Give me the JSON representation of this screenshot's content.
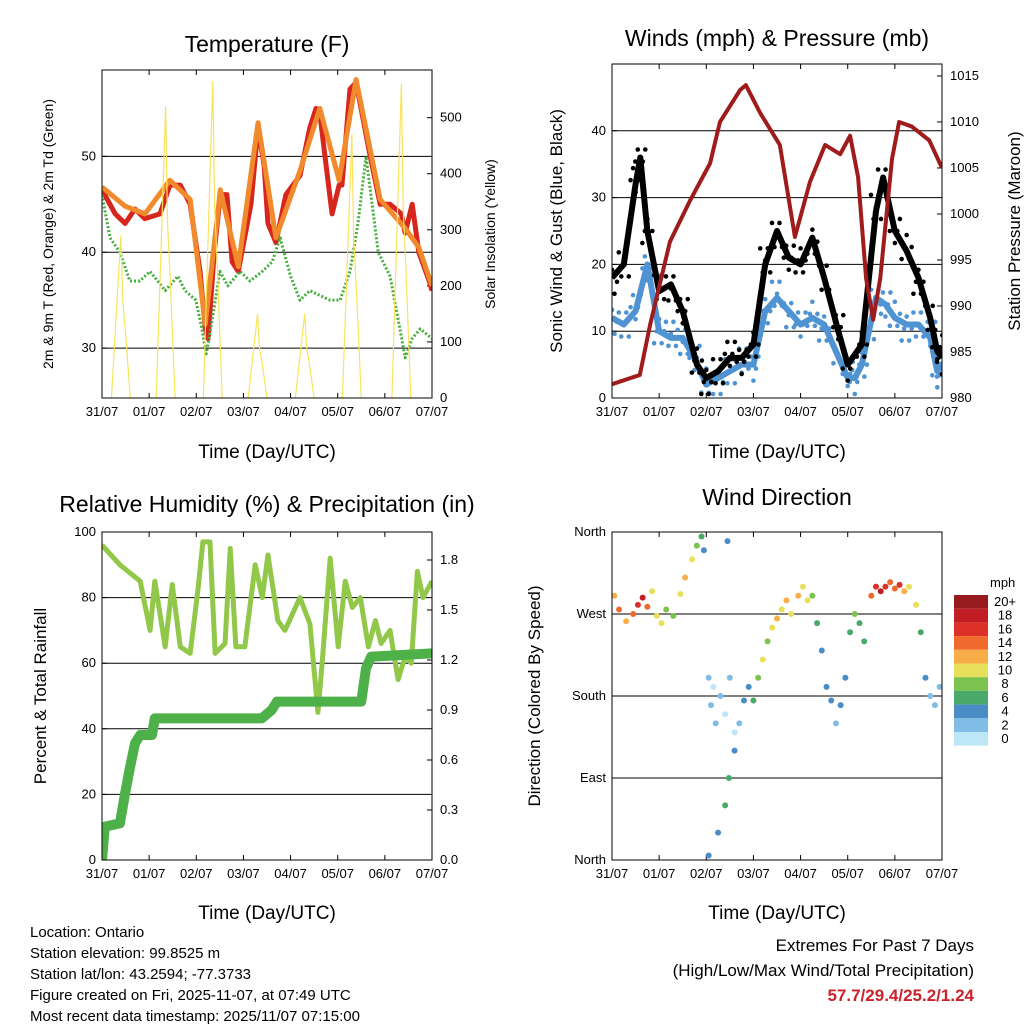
{
  "panels": {
    "temp": {
      "title": "Temperature (F)",
      "xlabel": "Time (Day/UTC)",
      "ylabel": "2m & 9m T (Red, Orange) & 2m Td (Green)",
      "ylabel2": "Solar Insolation (Yellow)"
    },
    "wind": {
      "title": "Winds (mph) & Pressure (mb)",
      "xlabel": "Time (Day/UTC)",
      "ylabel": "Sonic Wind & Gust (Blue, Black)",
      "ylabel2": "Station Pressure (Maroon)"
    },
    "rh": {
      "title": "Relative Humidity (%) & Precipitation (in)",
      "xlabel": "Time (Day/UTC)",
      "ylabel": "Percent & Total Rainfall"
    },
    "dir": {
      "title": "Wind Direction",
      "xlabel": "Time (Day/UTC)",
      "ylabel": "Direction (Colored By Speed)",
      "legend_title": "mph"
    }
  },
  "info": {
    "location": "Location: Ontario",
    "elevation": "Station elevation: 99.8525 m",
    "latlon": "Station lat/lon: 43.2594; -77.3733",
    "created": "Figure created on Fri, 2025-11-07, at 07:49 UTC",
    "recent": "Most recent data timestamp: 2025/11/07 07:15:00"
  },
  "extremes": {
    "title": "Extremes For Past 7 Days",
    "subtitle": "(High/Low/Max Wind/Total Precipitation)",
    "values": "57.7/29.4/25.2/1.24"
  },
  "chart_data": [
    {
      "type": "line",
      "id": "temp",
      "x_ticks": [
        "31/07",
        "01/07",
        "02/07",
        "03/07",
        "04/07",
        "05/07",
        "06/07",
        "07/07"
      ],
      "xlim": [
        0,
        7
      ],
      "ylim": [
        24.8,
        59
      ],
      "y_ticks": [
        30,
        40,
        50
      ],
      "y2lim": [
        0,
        585
      ],
      "y2_ticks": [
        0,
        100,
        200,
        300,
        400,
        500
      ],
      "grid": true,
      "series": [
        {
          "name": "2m T",
          "color": "#d7261e",
          "x": [
            0,
            0.28,
            0.49,
            0.7,
            0.91,
            1.23,
            1.44,
            1.66,
            1.87,
            1.99,
            2.08,
            2.19,
            2.25,
            2.38,
            2.51,
            2.65,
            2.76,
            2.89,
            3.16,
            3.31,
            3.44,
            3.52,
            3.69,
            3.9,
            4.2,
            4.41,
            4.54,
            4.62,
            4.73,
            4.88,
            5.03,
            5.09,
            5.26,
            5.39,
            5.69,
            5.9,
            6.11,
            6.35,
            6.43,
            6.58,
            6.72,
            6.94,
            7
          ],
          "y": [
            46.5,
            44,
            43,
            44.5,
            43.5,
            44,
            47,
            47,
            45,
            41,
            38,
            32,
            31,
            40,
            46,
            46,
            39,
            38,
            45,
            53,
            49,
            43,
            41,
            46,
            48,
            53,
            55,
            54.5,
            50,
            44,
            47,
            47,
            57,
            57.7,
            50,
            45,
            45,
            44,
            42,
            45,
            40,
            37,
            36
          ]
        },
        {
          "name": "9m T",
          "color": "#f08a2c",
          "x": [
            0,
            0.49,
            0.91,
            1.44,
            1.87,
            2.19,
            2.51,
            2.89,
            3.31,
            3.69,
            4.2,
            4.62,
            5.03,
            5.39,
            5.9,
            6.43,
            6.72,
            7
          ],
          "y": [
            46.8,
            44.8,
            44,
            47.5,
            45.5,
            32.5,
            46.5,
            38.5,
            53.5,
            41.5,
            48.5,
            55,
            47.5,
            58,
            45.5,
            42.5,
            40.5,
            36.5
          ]
        },
        {
          "name": "2m Td",
          "color": "#44ae3c",
          "x": [
            0,
            0.17,
            0.38,
            0.59,
            0.8,
            1.02,
            1.34,
            1.61,
            1.76,
            1.99,
            2.12,
            2.21,
            2.34,
            2.5,
            2.67,
            2.93,
            3.14,
            3.4,
            3.61,
            3.78,
            4.0,
            4.2,
            4.41,
            4.62,
            4.84,
            5.05,
            5.26,
            5.43,
            5.6,
            5.73,
            5.86,
            6.11,
            6.32,
            6.43,
            6.58,
            6.75,
            7
          ],
          "y": [
            46,
            41.5,
            40,
            37,
            37,
            38,
            36,
            37.5,
            36,
            35,
            32,
            29.4,
            33,
            38,
            36.5,
            38,
            37,
            38,
            39,
            41.5,
            37.5,
            35,
            36,
            35.5,
            35,
            35,
            38,
            43,
            50,
            45,
            40,
            37.5,
            32,
            29,
            31,
            32,
            31
          ]
        },
        {
          "name": "Solar Insolation",
          "axis": "right",
          "color": "#f8e35a",
          "peaks_day": [
            0.4,
            1.35,
            2.35,
            3.3,
            4.3,
            5.3,
            6.35
          ],
          "peaks_value": [
            290,
            520,
            565,
            150,
            150,
            470,
            560
          ]
        }
      ]
    },
    {
      "type": "line",
      "id": "wind",
      "x_ticks": [
        "31/07",
        "01/07",
        "02/07",
        "03/07",
        "04/07",
        "05/07",
        "06/07",
        "07/07"
      ],
      "xlim": [
        0,
        7
      ],
      "ylim": [
        0,
        50
      ],
      "y_ticks": [
        0,
        10,
        20,
        30,
        40
      ],
      "y2lim": [
        980,
        1016.3
      ],
      "y2_ticks": [
        980,
        985,
        990,
        995,
        1000,
        1005,
        1010,
        1015
      ],
      "grid": true,
      "series": [
        {
          "name": "Sonic Wind",
          "color": "#4f93d2",
          "x": [
            0,
            0.25,
            0.5,
            0.75,
            1.0,
            1.25,
            1.5,
            1.75,
            2.0,
            2.25,
            2.5,
            2.75,
            3.0,
            3.25,
            3.5,
            3.75,
            4.0,
            4.25,
            4.5,
            4.75,
            5.0,
            5.15,
            5.3,
            5.45,
            5.6,
            5.8,
            6.0,
            6.25,
            6.5,
            6.75,
            6.9,
            7
          ],
          "y": [
            12,
            11,
            13,
            20,
            10,
            9,
            9,
            6,
            2,
            3,
            4,
            5,
            5,
            13,
            15,
            13,
            11,
            12,
            11,
            7,
            3,
            3,
            5,
            10,
            15,
            14,
            12,
            11,
            11,
            9,
            4,
            5
          ]
        },
        {
          "name": "Gust",
          "color": "#000000",
          "x": [
            0,
            0.25,
            0.5,
            0.6,
            0.75,
            1.0,
            1.25,
            1.5,
            1.8,
            2.0,
            2.25,
            2.5,
            2.75,
            3.0,
            3.25,
            3.5,
            3.75,
            4.0,
            4.25,
            4.5,
            4.8,
            5.0,
            5.3,
            5.6,
            5.75,
            6.0,
            6.25,
            6.5,
            6.75,
            6.9,
            7
          ],
          "y": [
            18,
            20,
            32,
            36,
            25,
            16,
            17,
            13,
            5,
            3,
            4,
            6,
            6,
            8,
            20,
            25,
            21,
            20,
            24,
            18,
            10,
            5,
            8,
            28,
            33,
            25,
            22,
            18,
            12,
            7,
            6
          ]
        },
        {
          "name": "Station Pressure",
          "axis": "right",
          "color": "#a01c1c",
          "x": [
            0,
            0.59,
            0.81,
            1.23,
            1.66,
            2.08,
            2.29,
            2.72,
            2.84,
            3.14,
            3.56,
            3.88,
            4.2,
            4.52,
            4.84,
            5.05,
            5.22,
            5.39,
            5.54,
            5.69,
            5.94,
            6.09,
            6.36,
            6.73,
            7
          ],
          "y": [
            981.5,
            982.5,
            988,
            997,
            1001.5,
            1005.5,
            1010,
            1013.5,
            1014,
            1011,
            1007.5,
            997.5,
            1003.5,
            1007.5,
            1006.5,
            1008.5,
            1004,
            993,
            988.5,
            993,
            1006,
            1010,
            1009.5,
            1008,
            1005
          ]
        }
      ]
    },
    {
      "type": "line",
      "id": "rh",
      "x_ticks": [
        "31/07",
        "01/07",
        "02/07",
        "03/07",
        "04/07",
        "05/07",
        "06/07",
        "07/07"
      ],
      "xlim": [
        0,
        7
      ],
      "ylim": [
        0,
        100
      ],
      "y_ticks": [
        0,
        20,
        40,
        60,
        80,
        100
      ],
      "y2lim": [
        0,
        1.968
      ],
      "y2_ticks": [
        "0.0",
        "0.3",
        "0.6",
        "0.9",
        "1.2",
        "1.5",
        "1.8"
      ],
      "grid": true,
      "series": [
        {
          "name": "Relative Humidity",
          "color": "#92c84a",
          "x": [
            0,
            0.38,
            0.81,
            1.02,
            1.12,
            1.34,
            1.49,
            1.66,
            1.87,
            2.04,
            2.14,
            2.29,
            2.4,
            2.61,
            2.72,
            2.84,
            3.03,
            3.25,
            3.4,
            3.52,
            3.73,
            3.88,
            4.2,
            4.41,
            4.58,
            4.67,
            4.84,
            5.01,
            5.16,
            5.31,
            5.48,
            5.65,
            5.8,
            5.92,
            6.11,
            6.28,
            6.43,
            6.56,
            6.69,
            6.81,
            7
          ],
          "y": [
            96,
            90,
            85,
            70,
            85,
            65,
            84,
            65,
            63,
            83,
            97,
            97,
            63,
            66,
            95,
            65,
            65,
            90,
            80,
            93,
            73,
            70,
            80,
            72,
            45,
            60,
            92,
            65,
            85,
            77,
            80,
            65,
            73,
            66,
            70,
            55,
            62,
            60,
            88,
            80,
            85
          ]
        },
        {
          "name": "Total Rainfall",
          "axis": "right",
          "color": "#4db048",
          "x": [
            0,
            0.06,
            0.38,
            0.49,
            0.59,
            0.7,
            0.81,
            1.06,
            1.12,
            3.39,
            3.6,
            3.71,
            5.5,
            5.6,
            5.71,
            7
          ],
          "y": [
            0,
            0.2,
            0.22,
            0.4,
            0.55,
            0.7,
            0.75,
            0.75,
            0.85,
            0.85,
            0.9,
            0.95,
            0.95,
            1.15,
            1.22,
            1.24
          ]
        }
      ]
    },
    {
      "type": "scatter",
      "id": "dir",
      "x_ticks": [
        "31/07",
        "01/07",
        "02/07",
        "03/07",
        "04/07",
        "05/07",
        "06/07",
        "07/07"
      ],
      "xlim": [
        0,
        7
      ],
      "ylim": [
        0,
        360
      ],
      "y_ticks": [
        "North",
        "East",
        "South",
        "West",
        "North"
      ],
      "grid": true,
      "legend": {
        "labels": [
          "20+",
          "18",
          "16",
          "14",
          "12",
          "10",
          "8",
          "6",
          "4",
          "2",
          "0"
        ],
        "colors": [
          "#961a1e",
          "#c11d24",
          "#dd3128",
          "#f06a2e",
          "#f8ad48",
          "#e8e05a",
          "#7cc24e",
          "#4aa86a",
          "#4a8cc6",
          "#7fbde6",
          "#bde6f7"
        ],
        "placement": "right"
      },
      "points": [
        [
          0.05,
          290,
          12
        ],
        [
          0.15,
          275,
          14
        ],
        [
          0.3,
          262,
          12
        ],
        [
          0.45,
          270,
          14
        ],
        [
          0.55,
          280,
          16
        ],
        [
          0.65,
          288,
          18
        ],
        [
          0.75,
          278,
          15
        ],
        [
          0.85,
          295,
          10
        ],
        [
          0.95,
          268,
          11
        ],
        [
          1.05,
          260,
          10
        ],
        [
          1.15,
          275,
          9
        ],
        [
          1.3,
          268,
          8
        ],
        [
          1.45,
          292,
          10
        ],
        [
          1.55,
          310,
          12
        ],
        [
          1.7,
          330,
          10
        ],
        [
          1.8,
          345,
          8
        ],
        [
          1.9,
          355,
          6
        ],
        [
          1.95,
          340,
          5
        ],
        [
          2.05,
          200,
          3
        ],
        [
          2.1,
          170,
          2
        ],
        [
          2.15,
          190,
          1
        ],
        [
          2.2,
          150,
          2
        ],
        [
          2.3,
          180,
          3
        ],
        [
          2.4,
          160,
          1
        ],
        [
          2.5,
          200,
          2
        ],
        [
          2.6,
          140,
          1
        ],
        [
          2.05,
          5,
          4
        ],
        [
          2.25,
          30,
          5
        ],
        [
          2.4,
          60,
          6
        ],
        [
          2.48,
          90,
          7
        ],
        [
          2.45,
          350,
          5
        ],
        [
          2.6,
          120,
          4
        ],
        [
          2.7,
          150,
          3
        ],
        [
          2.8,
          175,
          5
        ],
        [
          2.9,
          190,
          4
        ],
        [
          3.0,
          175,
          6
        ],
        [
          3.1,
          200,
          8
        ],
        [
          3.2,
          220,
          10
        ],
        [
          3.3,
          240,
          9
        ],
        [
          3.4,
          255,
          11
        ],
        [
          3.5,
          265,
          12
        ],
        [
          3.6,
          275,
          10
        ],
        [
          3.7,
          285,
          12
        ],
        [
          3.8,
          270,
          11
        ],
        [
          3.95,
          290,
          13
        ],
        [
          4.05,
          300,
          11
        ],
        [
          4.15,
          285,
          10
        ],
        [
          4.25,
          290,
          9
        ],
        [
          4.35,
          260,
          7
        ],
        [
          4.45,
          230,
          5
        ],
        [
          4.55,
          190,
          4
        ],
        [
          4.65,
          175,
          4
        ],
        [
          4.75,
          150,
          3
        ],
        [
          4.85,
          170,
          4
        ],
        [
          4.95,
          200,
          5
        ],
        [
          5.05,
          250,
          6
        ],
        [
          5.15,
          270,
          8
        ],
        [
          5.25,
          260,
          7
        ],
        [
          5.35,
          240,
          6
        ],
        [
          5.5,
          290,
          14
        ],
        [
          5.6,
          300,
          16
        ],
        [
          5.7,
          295,
          18
        ],
        [
          5.8,
          300,
          17
        ],
        [
          5.9,
          305,
          15
        ],
        [
          6.0,
          298,
          14
        ],
        [
          6.1,
          302,
          16
        ],
        [
          6.2,
          295,
          12
        ],
        [
          6.3,
          300,
          11
        ],
        [
          6.45,
          280,
          10
        ],
        [
          6.55,
          250,
          6
        ],
        [
          6.65,
          200,
          4
        ],
        [
          6.75,
          180,
          3
        ],
        [
          6.85,
          170,
          2
        ],
        [
          6.95,
          190,
          3
        ]
      ]
    }
  ]
}
